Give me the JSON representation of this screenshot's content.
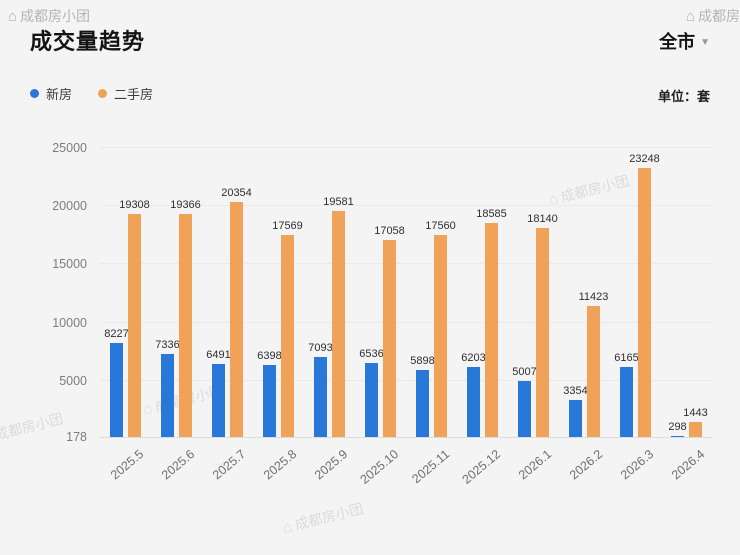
{
  "header": {
    "title": "成交量趋势",
    "scope": "全市",
    "scope_arrow": "▼"
  },
  "legend": {
    "unit_label": "单位：套"
  },
  "watermark": {
    "icon_glyph": "⌂",
    "text": "成都房小团"
  },
  "chart_data": {
    "type": "bar",
    "title": "成交量趋势",
    "unit": "套",
    "categories": [
      "2025.5",
      "2025.6",
      "2025.7",
      "2025.8",
      "2025.9",
      "2025.10",
      "2025.11",
      "2025.12",
      "2026.1",
      "2026.2",
      "2026.3",
      "2026.4"
    ],
    "series": [
      {
        "name": "新房",
        "color": "#2878d9",
        "values": [
          8227,
          7336,
          6491,
          6398,
          7093,
          6536,
          5898,
          6203,
          5007,
          3354,
          6165,
          298
        ]
      },
      {
        "name": "二手房",
        "color": "#f0a259",
        "values": [
          19308,
          19366,
          20354,
          17569,
          19581,
          17058,
          17560,
          18585,
          18140,
          11423,
          23248,
          1443
        ]
      }
    ],
    "y_ticks": [
      178,
      5000,
      10000,
      15000,
      20000,
      25000
    ],
    "ylim": [
      178,
      25000
    ],
    "grid": true,
    "legend_position": "top-left"
  }
}
